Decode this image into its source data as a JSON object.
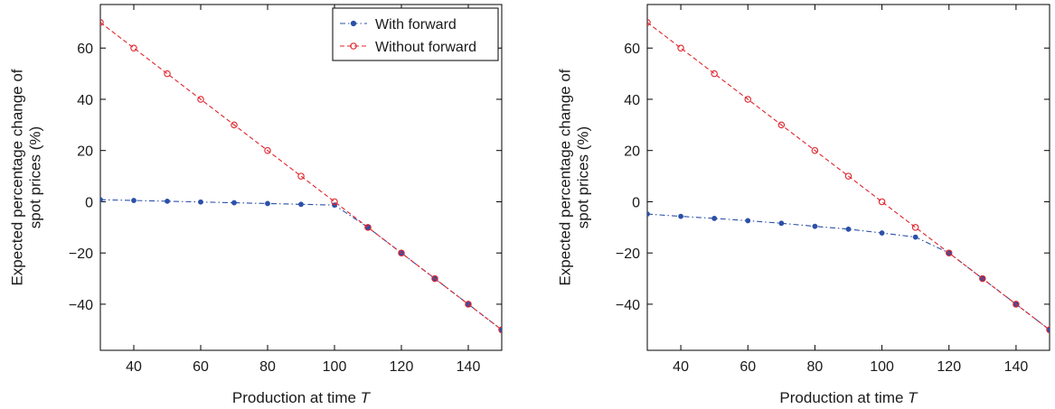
{
  "chart_data": [
    {
      "type": "line",
      "xlabel": "Production at time",
      "xlabel_italic": "T",
      "ylabel": [
        "Expected percentage change of",
        "spot prices (%)"
      ],
      "xlim": [
        30,
        150
      ],
      "ylim": [
        -58,
        77
      ],
      "xticks": [
        40,
        60,
        80,
        100,
        120,
        140
      ],
      "yticks": [
        -40,
        -20,
        0,
        20,
        40,
        60
      ],
      "ytick_labels": [
        "−40",
        "−20",
        "0",
        "20",
        "40",
        "60"
      ],
      "legend": "top-right",
      "series": [
        {
          "name": "With forward",
          "color": "#2b50a8",
          "marker": "star",
          "dash": "dash-dot",
          "x": [
            30,
            40,
            50,
            60,
            70,
            80,
            90,
            100,
            110,
            120,
            130,
            140,
            150
          ],
          "y": [
            0.8,
            0.5,
            0.2,
            -0.1,
            -0.4,
            -0.7,
            -1.0,
            -1.3,
            -10,
            -20,
            -30,
            -40,
            -50
          ]
        },
        {
          "name": "Without forward",
          "color": "#e0242c",
          "marker": "circle",
          "dash": "dashed",
          "x": [
            30,
            40,
            50,
            60,
            70,
            80,
            90,
            100,
            110,
            120,
            130,
            140,
            150
          ],
          "y": [
            70,
            60,
            50,
            40,
            30,
            20,
            10,
            0,
            -10,
            -20,
            -30,
            -40,
            -50
          ]
        }
      ]
    },
    {
      "type": "line",
      "xlabel": "Production at time",
      "xlabel_italic": "T",
      "ylabel": [
        "Expected percentage change of",
        "spot prices (%)"
      ],
      "xlim": [
        30,
        150
      ],
      "ylim": [
        -58,
        77
      ],
      "xticks": [
        40,
        60,
        80,
        100,
        120,
        140
      ],
      "yticks": [
        -40,
        -20,
        0,
        20,
        40,
        60
      ],
      "ytick_labels": [
        "−40",
        "−20",
        "0",
        "20",
        "40",
        "60"
      ],
      "legend": "none",
      "series": [
        {
          "name": "With forward",
          "color": "#2b50a8",
          "marker": "star",
          "dash": "dash-dot",
          "x": [
            30,
            40,
            50,
            60,
            70,
            80,
            90,
            100,
            110,
            120,
            130,
            140,
            150
          ],
          "y": [
            -4.8,
            -5.7,
            -6.5,
            -7.4,
            -8.4,
            -9.6,
            -10.7,
            -12.2,
            -13.8,
            -20,
            -30,
            -40,
            -50
          ]
        },
        {
          "name": "Without forward",
          "color": "#e0242c",
          "marker": "circle",
          "dash": "dashed",
          "x": [
            30,
            40,
            50,
            60,
            70,
            80,
            90,
            100,
            110,
            120,
            130,
            140,
            150
          ],
          "y": [
            70,
            60,
            50,
            40,
            30,
            20,
            10,
            0,
            -10,
            -20,
            -30,
            -40,
            -50
          ]
        }
      ]
    }
  ]
}
